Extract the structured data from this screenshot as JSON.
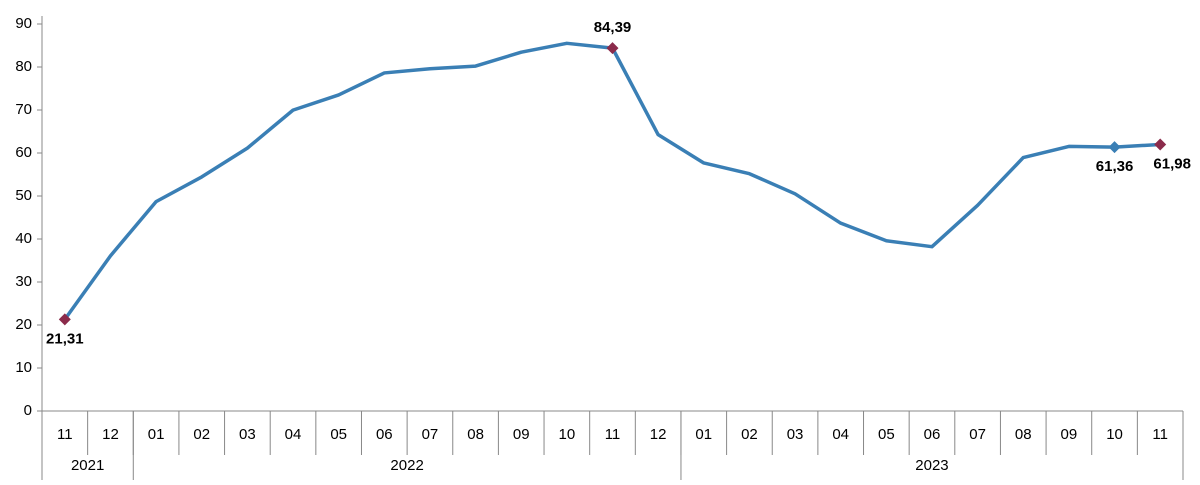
{
  "chart_data": {
    "type": "line",
    "categories": [
      "11",
      "12",
      "01",
      "02",
      "03",
      "04",
      "05",
      "06",
      "07",
      "08",
      "09",
      "10",
      "11",
      "12",
      "01",
      "02",
      "03",
      "04",
      "05",
      "06",
      "07",
      "08",
      "09",
      "10",
      "11"
    ],
    "groups": [
      {
        "label": "2021",
        "count": 2
      },
      {
        "label": "2022",
        "count": 12
      },
      {
        "label": "2023",
        "count": 11
      }
    ],
    "series": [
      {
        "color": "#3a7fb5",
        "values": [
          21.31,
          36.08,
          48.69,
          54.44,
          61.14,
          69.97,
          73.5,
          78.62,
          79.6,
          80.21,
          83.45,
          85.51,
          84.39,
          64.27,
          57.68,
          55.18,
          50.51,
          43.68,
          39.59,
          38.21,
          47.83,
          58.94,
          61.53,
          61.36,
          61.98
        ],
        "value_labels": [
          "21,31",
          null,
          null,
          null,
          null,
          null,
          null,
          null,
          null,
          null,
          null,
          null,
          "84,39",
          null,
          null,
          null,
          null,
          null,
          null,
          null,
          null,
          null,
          null,
          "61,36",
          "61,98"
        ],
        "marker_colors": [
          "#8b2b4b",
          null,
          null,
          null,
          null,
          null,
          null,
          null,
          null,
          null,
          null,
          null,
          "#8b2b4b",
          null,
          null,
          null,
          null,
          null,
          null,
          null,
          null,
          null,
          null,
          "#3a7fb5",
          "#8b2b4b"
        ]
      }
    ],
    "ylim": [
      0,
      90
    ],
    "yticks": [
      0,
      10,
      20,
      30,
      40,
      50,
      60,
      70,
      80,
      90
    ],
    "grid": false
  }
}
